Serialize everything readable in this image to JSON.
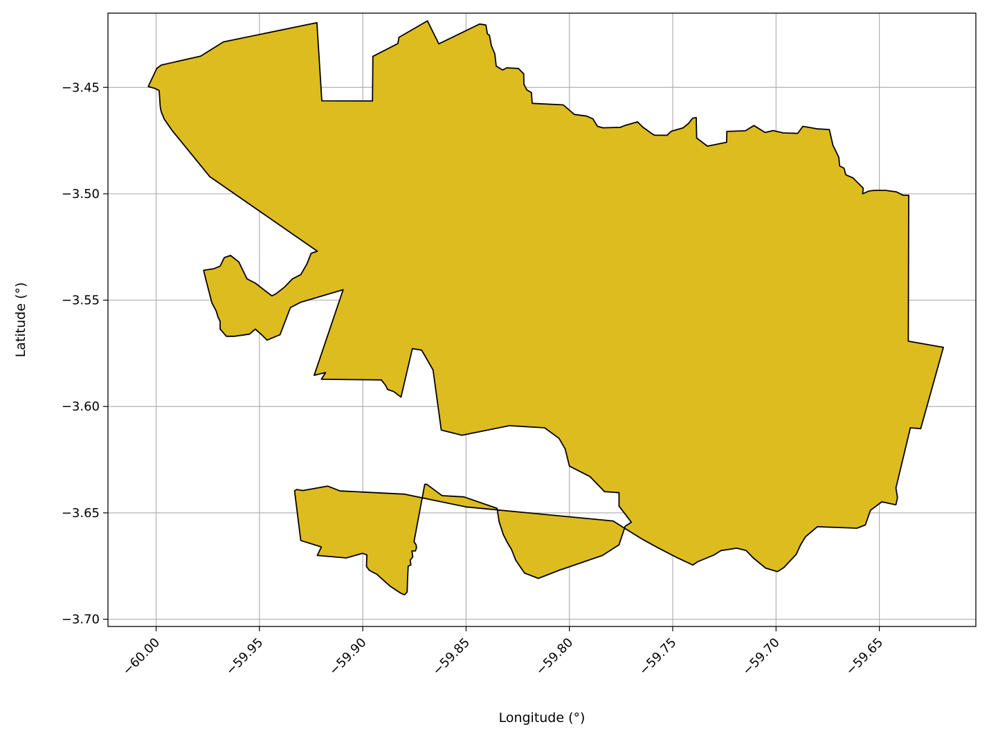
{
  "chart_data": {
    "type": "map",
    "xlabel": "Longitude (°)",
    "ylabel": "Latitude (°)",
    "xlim": [
      -60.0233,
      -59.6033
    ],
    "ylim": [
      -3.7034,
      -3.4151
    ],
    "x_ticks": [
      -60.0,
      -59.95,
      -59.9,
      -59.85,
      -59.8,
      -59.75,
      -59.7,
      -59.65
    ],
    "x_tick_labels": [
      "−60.00",
      "−59.95",
      "−59.90",
      "−59.85",
      "−59.80",
      "−59.75",
      "−59.70",
      "−59.65"
    ],
    "y_ticks": [
      -3.45,
      -3.5,
      -3.55,
      -3.6,
      -3.65,
      -3.7
    ],
    "y_tick_labels": [
      "−3.45",
      "−3.50",
      "−3.55",
      "−3.60",
      "−3.65",
      "−3.70"
    ],
    "grid": true,
    "fill_color": "#DDBC1F",
    "edge_color": "#000000",
    "polygon": [
      [
        -60.0038,
        -3.4496
      ],
      [
        -59.9997,
        -3.4411
      ],
      [
        -59.9975,
        -3.4395
      ],
      [
        -59.9785,
        -3.4353
      ],
      [
        -59.9674,
        -3.4286
      ],
      [
        -59.9222,
        -3.4196
      ],
      [
        -59.9198,
        -3.4563
      ],
      [
        -59.8953,
        -3.4564
      ],
      [
        -59.8951,
        -3.4354
      ],
      [
        -59.883,
        -3.4294
      ],
      [
        -59.8825,
        -3.4265
      ],
      [
        -59.8687,
        -3.4187
      ],
      [
        -59.8632,
        -3.4295
      ],
      [
        -59.8434,
        -3.4202
      ],
      [
        -59.8404,
        -3.4207
      ],
      [
        -59.8397,
        -3.4248
      ],
      [
        -59.8387,
        -3.4255
      ],
      [
        -59.8377,
        -3.4305
      ],
      [
        -59.8361,
        -3.4342
      ],
      [
        -59.8354,
        -3.44
      ],
      [
        -59.8323,
        -3.4418
      ],
      [
        -59.8303,
        -3.4408
      ],
      [
        -59.8247,
        -3.4411
      ],
      [
        -59.8221,
        -3.4436
      ],
      [
        -59.822,
        -3.4485
      ],
      [
        -59.8206,
        -3.4512
      ],
      [
        -59.8184,
        -3.4524
      ],
      [
        -59.818,
        -3.4575
      ],
      [
        -59.803,
        -3.4582
      ],
      [
        -59.7976,
        -3.4627
      ],
      [
        -59.7916,
        -3.4635
      ],
      [
        -59.7886,
        -3.4648
      ],
      [
        -59.7864,
        -3.4683
      ],
      [
        -59.7838,
        -3.469
      ],
      [
        -59.7755,
        -3.4688
      ],
      [
        -59.7731,
        -3.4679
      ],
      [
        -59.767,
        -3.4662
      ],
      [
        -59.7647,
        -3.4685
      ],
      [
        -59.7598,
        -3.4719
      ],
      [
        -59.7587,
        -3.4725
      ],
      [
        -59.7527,
        -3.4725
      ],
      [
        -59.7507,
        -3.4706
      ],
      [
        -59.7449,
        -3.469
      ],
      [
        -59.7424,
        -3.467
      ],
      [
        -59.7404,
        -3.4645
      ],
      [
        -59.7386,
        -3.4642
      ],
      [
        -59.7384,
        -3.4738
      ],
      [
        -59.7332,
        -3.4776
      ],
      [
        -59.7239,
        -3.4758
      ],
      [
        -59.7238,
        -3.4707
      ],
      [
        -59.7148,
        -3.4704
      ],
      [
        -59.7107,
        -3.4679
      ],
      [
        -59.7053,
        -3.4712
      ],
      [
        -59.7014,
        -3.4703
      ],
      [
        -59.6965,
        -3.4714
      ],
      [
        -59.6895,
        -3.4716
      ],
      [
        -59.687,
        -3.4683
      ],
      [
        -59.6798,
        -3.4695
      ],
      [
        -59.6742,
        -3.4698
      ],
      [
        -59.6725,
        -3.4771
      ],
      [
        -59.6696,
        -3.4829
      ],
      [
        -59.6692,
        -3.4869
      ],
      [
        -59.6671,
        -3.488
      ],
      [
        -59.6662,
        -3.4911
      ],
      [
        -59.6628,
        -3.4925
      ],
      [
        -59.6578,
        -3.4974
      ],
      [
        -59.6581,
        -3.5
      ],
      [
        -59.655,
        -3.4987
      ],
      [
        -59.6521,
        -3.4984
      ],
      [
        -59.6471,
        -3.4984
      ],
      [
        -59.6418,
        -3.4991
      ],
      [
        -59.6385,
        -3.5007
      ],
      [
        -59.6358,
        -3.5007
      ],
      [
        -59.636,
        -3.5693
      ],
      [
        -59.619,
        -3.5722
      ],
      [
        -59.63,
        -3.6104
      ],
      [
        -59.635,
        -3.61
      ],
      [
        -59.642,
        -3.6383
      ],
      [
        -59.6412,
        -3.6428
      ],
      [
        -59.642,
        -3.6462
      ],
      [
        -59.6488,
        -3.6448
      ],
      [
        -59.6543,
        -3.6488
      ],
      [
        -59.6568,
        -3.6557
      ],
      [
        -59.6608,
        -3.6572
      ],
      [
        -59.68,
        -3.6565
      ],
      [
        -59.6858,
        -3.6613
      ],
      [
        -59.6882,
        -3.6652
      ],
      [
        -59.6902,
        -3.6695
      ],
      [
        -59.6962,
        -3.6757
      ],
      [
        -59.6993,
        -3.6776
      ],
      [
        -59.705,
        -3.676
      ],
      [
        -59.711,
        -3.6712
      ],
      [
        -59.7145,
        -3.6677
      ],
      [
        -59.719,
        -3.6666
      ],
      [
        -59.7266,
        -3.6677
      ],
      [
        -59.73,
        -3.6698
      ],
      [
        -59.738,
        -3.673
      ],
      [
        -59.7403,
        -3.6745
      ],
      [
        -59.748,
        -3.671
      ],
      [
        -59.757,
        -3.6665
      ],
      [
        -59.765,
        -3.6622
      ],
      [
        -59.772,
        -3.658
      ],
      [
        -59.7788,
        -3.6538
      ],
      [
        -59.85,
        -3.6472
      ],
      [
        -59.88,
        -3.6412
      ],
      [
        -59.9,
        -3.6402
      ],
      [
        -59.902,
        -3.6401
      ],
      [
        -59.911,
        -3.6397
      ],
      [
        -59.917,
        -3.6374
      ],
      [
        -59.929,
        -3.6395
      ],
      [
        -59.932,
        -3.639
      ],
      [
        -59.933,
        -3.6397
      ],
      [
        -59.93,
        -3.663
      ],
      [
        -59.92,
        -3.666
      ],
      [
        -59.922,
        -3.67
      ],
      [
        -59.908,
        -3.6712
      ],
      [
        -59.9,
        -3.669
      ],
      [
        -59.898,
        -3.6698
      ],
      [
        -59.8982,
        -3.6752
      ],
      [
        -59.8968,
        -3.677
      ],
      [
        -59.895,
        -3.678
      ],
      [
        -59.8932,
        -3.6788
      ],
      [
        -59.8895,
        -3.6821
      ],
      [
        -59.8867,
        -3.6845
      ],
      [
        -59.8817,
        -3.6877
      ],
      [
        -59.8798,
        -3.6885
      ],
      [
        -59.8785,
        -3.6872
      ],
      [
        -59.8783,
        -3.681
      ],
      [
        -59.878,
        -3.675
      ],
      [
        -59.8767,
        -3.6745
      ],
      [
        -59.877,
        -3.6722
      ],
      [
        -59.8758,
        -3.6707
      ],
      [
        -59.8762,
        -3.6679
      ],
      [
        -59.8745,
        -3.6679
      ],
      [
        -59.874,
        -3.6663
      ],
      [
        -59.8742,
        -3.665
      ],
      [
        -59.8752,
        -3.6635
      ],
      [
        -59.87,
        -3.6366
      ],
      [
        -59.869,
        -3.6366
      ],
      [
        -59.8616,
        -3.6419
      ],
      [
        -59.851,
        -3.6425
      ],
      [
        -59.835,
        -3.6479
      ],
      [
        -59.834,
        -3.6542
      ],
      [
        -59.832,
        -3.6602
      ],
      [
        -59.83,
        -3.664
      ],
      [
        -59.828,
        -3.6672
      ],
      [
        -59.826,
        -3.6722
      ],
      [
        -59.8217,
        -3.6783
      ],
      [
        -59.815,
        -3.6808
      ],
      [
        -59.805,
        -3.677
      ],
      [
        -59.784,
        -3.67
      ],
      [
        -59.776,
        -3.665
      ],
      [
        -59.773,
        -3.6563
      ],
      [
        -59.77,
        -3.6544
      ],
      [
        -59.776,
        -3.6468
      ],
      [
        -59.776,
        -3.6405
      ],
      [
        -59.783,
        -3.64
      ],
      [
        -59.79,
        -3.633
      ],
      [
        -59.8,
        -3.628
      ],
      [
        -59.802,
        -3.62
      ],
      [
        -59.805,
        -3.615
      ],
      [
        -59.812,
        -3.61
      ],
      [
        -59.829,
        -3.609
      ],
      [
        -59.852,
        -3.6135
      ],
      [
        -59.862,
        -3.6111
      ],
      [
        -59.866,
        -3.5828
      ],
      [
        -59.8715,
        -3.5735
      ],
      [
        -59.876,
        -3.5728
      ],
      [
        -59.8815,
        -3.5956
      ],
      [
        -59.885,
        -3.593
      ],
      [
        -59.888,
        -3.592
      ],
      [
        -59.889,
        -3.59
      ],
      [
        -59.891,
        -3.5875
      ],
      [
        -59.92,
        -3.5872
      ],
      [
        -59.918,
        -3.584
      ],
      [
        -59.9235,
        -3.5853
      ],
      [
        -59.9095,
        -3.5451
      ],
      [
        -59.93,
        -3.551
      ],
      [
        -59.935,
        -3.5535
      ],
      [
        -59.94,
        -3.5662
      ],
      [
        -59.9463,
        -3.5688
      ],
      [
        -59.949,
        -3.5662
      ],
      [
        -59.952,
        -3.5636
      ],
      [
        -59.9548,
        -3.566
      ],
      [
        -59.9622,
        -3.567
      ],
      [
        -59.966,
        -3.567
      ],
      [
        -59.969,
        -3.5636
      ],
      [
        -59.969,
        -3.56
      ],
      [
        -59.97,
        -3.558
      ],
      [
        -59.971,
        -3.555
      ],
      [
        -59.973,
        -3.5513
      ],
      [
        -59.976,
        -3.54
      ],
      [
        -59.977,
        -3.536
      ],
      [
        -59.972,
        -3.5352
      ],
      [
        -59.969,
        -3.534
      ],
      [
        -59.967,
        -3.53
      ],
      [
        -59.964,
        -3.529
      ],
      [
        -59.96,
        -3.532
      ],
      [
        -59.956,
        -3.54
      ],
      [
        -59.952,
        -3.542
      ],
      [
        -59.948,
        -3.545
      ],
      [
        -59.944,
        -3.548
      ],
      [
        -59.942,
        -3.547
      ],
      [
        -59.938,
        -3.544
      ],
      [
        -59.934,
        -3.54
      ],
      [
        -59.93,
        -3.538
      ],
      [
        -59.927,
        -3.533
      ],
      [
        -59.925,
        -3.528
      ],
      [
        -59.922,
        -3.527
      ],
      [
        -59.974,
        -3.492
      ],
      [
        -59.9923,
        -3.4702
      ],
      [
        -59.996,
        -3.465
      ],
      [
        -59.9975,
        -3.4615
      ],
      [
        -59.998,
        -3.459
      ],
      [
        -59.9985,
        -3.4515
      ],
      [
        -60.0005,
        -3.4505
      ],
      [
        -60.0038,
        -3.4496
      ]
    ]
  }
}
